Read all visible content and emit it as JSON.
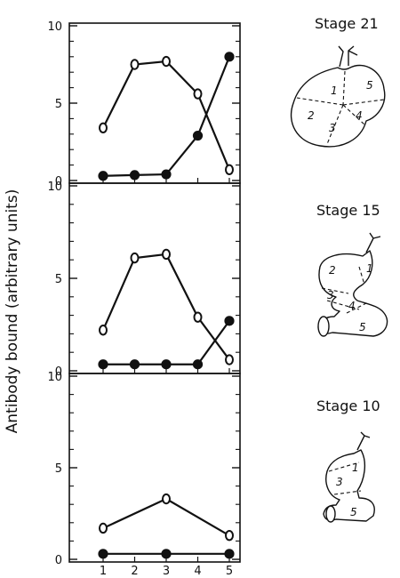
{
  "chart_data": {
    "type": "line",
    "ylabel": "Antibody bound (arbitrary units)",
    "x": [
      1,
      2,
      3,
      4,
      5
    ],
    "ylim": [
      0,
      10
    ],
    "yticks": [
      0,
      5,
      10
    ],
    "grid": false,
    "panels": [
      {
        "title": "Stage 21",
        "series": [
          {
            "marker": "open-circle",
            "x": [
              1,
              2,
              3,
              4,
              5
            ],
            "values": [
              3.4,
              7.5,
              7.7,
              5.6,
              0.7
            ]
          },
          {
            "marker": "filled-circle",
            "x": [
              1,
              2,
              3,
              4,
              5
            ],
            "values": [
              0.3,
              0.35,
              0.4,
              2.9,
              8.0
            ]
          }
        ],
        "regions": [
          "1",
          "2",
          "3",
          "4",
          "5"
        ]
      },
      {
        "title": "Stage 15",
        "series": [
          {
            "marker": "open-circle",
            "x": [
              1,
              2,
              3,
              4,
              5
            ],
            "values": [
              2.2,
              6.1,
              6.3,
              2.9,
              0.6
            ]
          },
          {
            "marker": "filled-circle",
            "x": [
              1,
              2,
              3,
              4,
              5
            ],
            "values": [
              0.35,
              0.35,
              0.35,
              0.35,
              2.7
            ]
          }
        ],
        "regions": [
          "1",
          "2",
          "3",
          "4",
          "5"
        ]
      },
      {
        "title": "Stage 10",
        "series": [
          {
            "marker": "open-circle",
            "x": [
              1,
              3,
              5
            ],
            "values": [
              1.7,
              3.3,
              1.3
            ]
          },
          {
            "marker": "filled-circle",
            "x": [
              1,
              3,
              5
            ],
            "values": [
              0.3,
              0.3,
              0.3
            ]
          }
        ],
        "regions": [
          "1",
          "3",
          "5"
        ]
      }
    ]
  }
}
